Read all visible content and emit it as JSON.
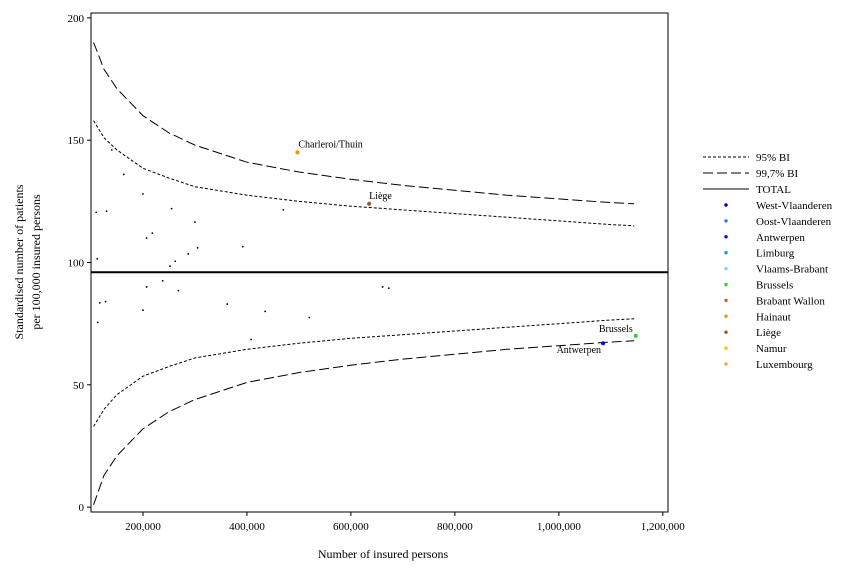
{
  "chart_data": {
    "type": "scatter",
    "title": "",
    "xlabel": "Number of insured persons",
    "ylabel": "Standardised number of patients per 100,000 insured persons",
    "ylabel_lines": [
      "Standardised number of patients",
      "per 100,000 insured persons"
    ],
    "xlim": [
      100000,
      1210000
    ],
    "ylim": [
      -2,
      202
    ],
    "x_ticks": [
      200000,
      400000,
      600000,
      800000,
      1000000,
      1200000
    ],
    "x_tick_labels": [
      "200,000",
      "400,000",
      "600,000",
      "800,000",
      "1,000,000",
      "1,200,000"
    ],
    "y_ticks": [
      0,
      50,
      100,
      150,
      200
    ],
    "y_tick_labels": [
      "0",
      "50",
      "100",
      "150",
      "200"
    ],
    "grid": false,
    "legend_position": "right",
    "total": 96,
    "bands": {
      "ci95_label": "95% BI",
      "ci997_label": "99,7% BI",
      "total_label": "TOTAL",
      "x": [
        105000,
        125000,
        150000,
        200000,
        250000,
        300000,
        400000,
        500000,
        600000,
        700000,
        800000,
        900000,
        1000000,
        1100000,
        1145000
      ],
      "upper95": [
        158,
        151,
        146,
        138.5,
        134.5,
        131,
        127.5,
        125,
        123,
        121.5,
        120,
        118.5,
        117,
        115.5,
        115
      ],
      "lower95": [
        33,
        40,
        46,
        53.5,
        57.5,
        61,
        64.5,
        67,
        69,
        70.5,
        72,
        73.5,
        75,
        76.5,
        77
      ],
      "upper997": [
        190,
        179,
        171,
        160,
        153,
        148,
        141,
        137,
        134,
        131.5,
        129.5,
        127.5,
        126,
        124.5,
        124
      ],
      "lower997": [
        1,
        13,
        21,
        32,
        39,
        44,
        51,
        55,
        58,
        60.5,
        62.5,
        64.5,
        66,
        67.5,
        68
      ]
    },
    "series": [
      {
        "name": "West-Vlaanderen",
        "color": "#00008b",
        "points": []
      },
      {
        "name": "Oost-Vlaanderen",
        "color": "#4169e1",
        "points": []
      },
      {
        "name": "Antwerpen",
        "color": "#0000ff",
        "points": [
          [
            1085000,
            67
          ]
        ]
      },
      {
        "name": "Limburg",
        "color": "#1e90ff",
        "points": []
      },
      {
        "name": "Vlaams-Brabant",
        "color": "#87cefa",
        "points": []
      },
      {
        "name": "Brussels",
        "color": "#32cd32",
        "points": [
          [
            1148000,
            70
          ]
        ]
      },
      {
        "name": "Brabant Wallon",
        "color": "#e2582a",
        "points": []
      },
      {
        "name": "Hainaut",
        "color": "#ff8c00",
        "points": [
          [
            497000,
            145
          ]
        ]
      },
      {
        "name": "Liège",
        "color": "#a0522d",
        "points": [
          [
            635000,
            124
          ]
        ]
      },
      {
        "name": "Namur",
        "color": "#ffc300",
        "points": []
      },
      {
        "name": "Luxembourg",
        "color": "#f4a640",
        "points": []
      }
    ],
    "other_points": [
      [
        110000,
        120.5
      ],
      [
        112000,
        101.5
      ],
      [
        113000,
        75.5
      ],
      [
        117000,
        83.5
      ],
      [
        128000,
        84
      ],
      [
        130000,
        121
      ],
      [
        140000,
        146
      ],
      [
        163000,
        136
      ],
      [
        200000,
        128
      ],
      [
        200000,
        80.5
      ],
      [
        207000,
        110
      ],
      [
        207000,
        90
      ],
      [
        218000,
        112
      ],
      [
        238000,
        92.5
      ],
      [
        252000,
        98.5
      ],
      [
        255000,
        122
      ],
      [
        262000,
        100.5
      ],
      [
        268000,
        88.5
      ],
      [
        287000,
        103.5
      ],
      [
        300000,
        116.5
      ],
      [
        305000,
        106
      ],
      [
        362000,
        83
      ],
      [
        392000,
        106.5
      ],
      [
        408000,
        68.5
      ],
      [
        435000,
        80
      ],
      [
        470000,
        121.5
      ],
      [
        520000,
        77.5
      ],
      [
        661000,
        90
      ],
      [
        673000,
        89.5
      ]
    ],
    "annotations": [
      {
        "text": "Charleroi/Thuin",
        "x": 497000,
        "y": 145,
        "anchor": "start",
        "dx": 1,
        "dy": -5
      },
      {
        "text": "Liège",
        "x": 635000,
        "y": 124,
        "anchor": "start",
        "dx": 0,
        "dy": -5
      },
      {
        "text": "Brussels",
        "x": 1148000,
        "y": 70,
        "anchor": "end",
        "dx": -3,
        "dy": -4
      },
      {
        "text": "Antwerpen",
        "x": 1085000,
        "y": 67,
        "anchor": "end",
        "dx": -2,
        "dy": 10
      }
    ]
  }
}
